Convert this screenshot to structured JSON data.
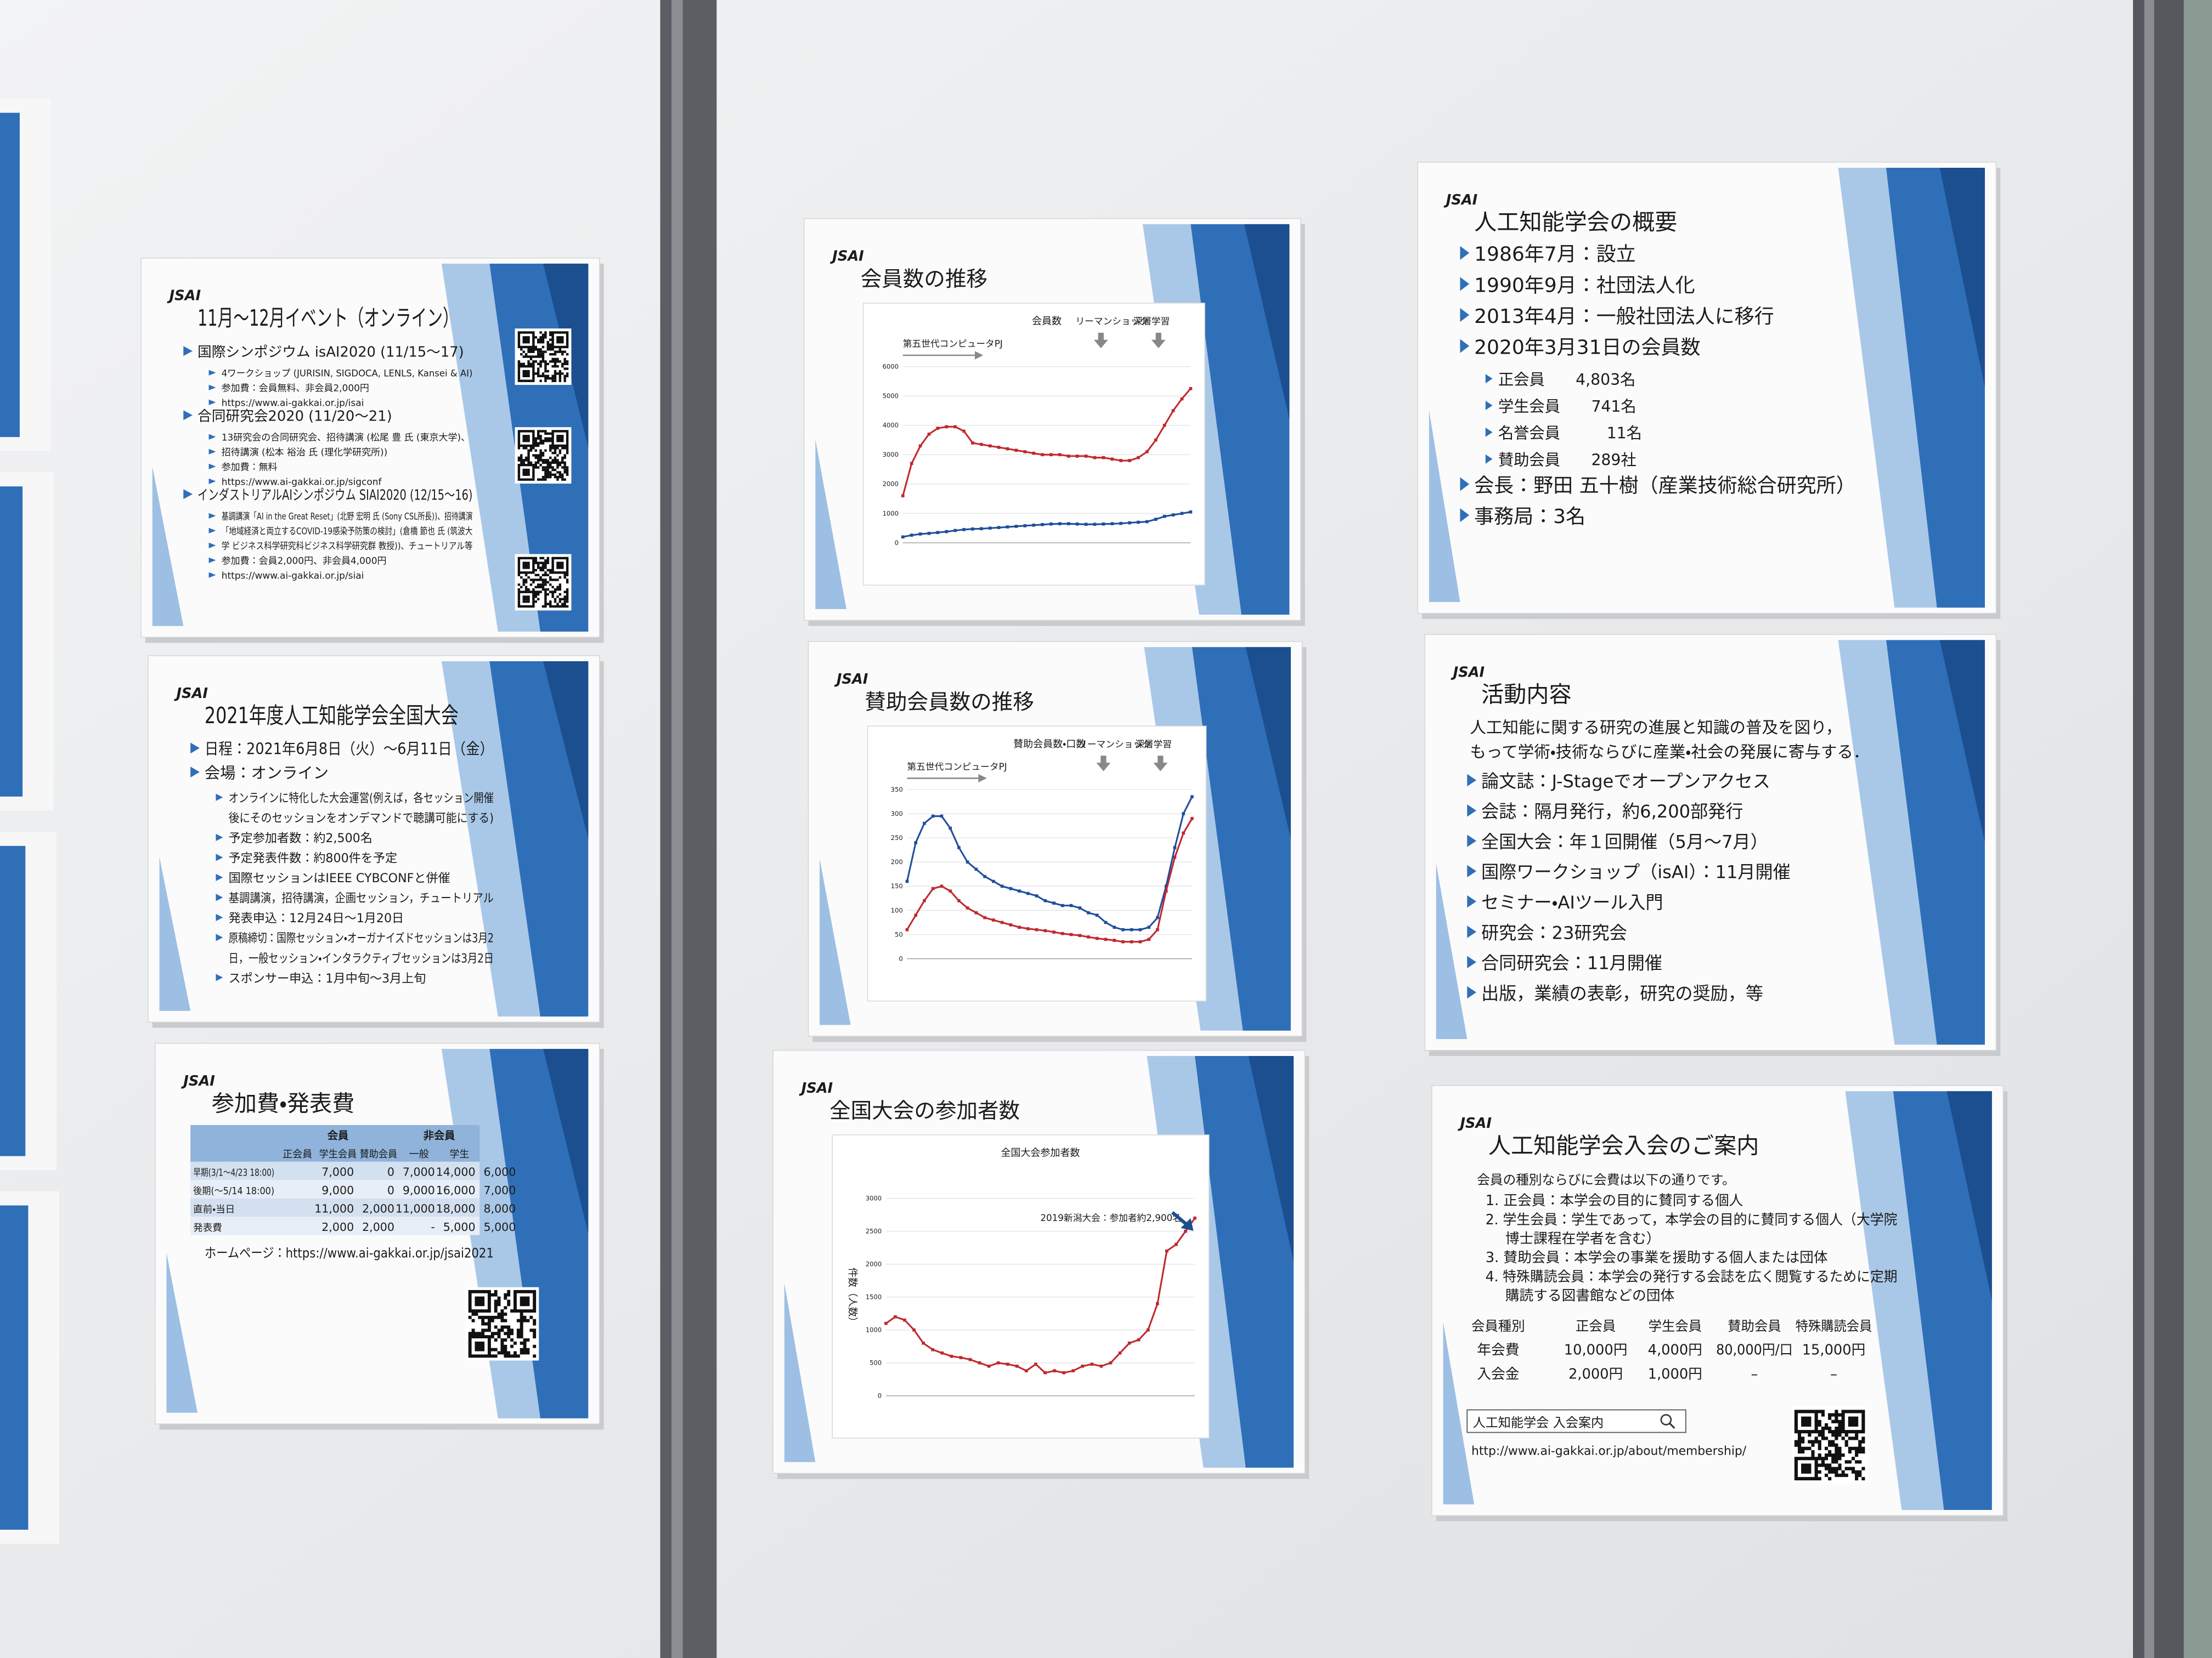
{
  "posters": [
    {
      "logo": "JSAI",
      "title": "11月～12月イベント（オンライン）",
      "items": [
        {
          "text": "国際シンポジウム isAI2020 (11/15～17)",
          "details": [
            "4ワークショップ (JURISIN, SIGDOCA, LENLS, Kansei & AI)",
            "参加費：会員無料、非会員2,000円",
            "https://www.ai-gakkai.or.jp/isai"
          ]
        },
        {
          "text": "合同研究会2020 (11/20～21)",
          "details": [
            "13研究会の合同研究会、招待講演 (松尾 豊 氏 (東京大学)、",
            "招待講演 (松本 裕治 氏 (理化学研究所))",
            "参加費：無料",
            "https://www.ai-gakkai.or.jp/sigconf"
          ]
        },
        {
          "text": "インダストリアルAIシンポジウム SIAI2020 (12/15～16)",
          "details": [
            "基調講演「AI in the Great Reset」(北野 宏明 氏 (Sony CSL所長))、招待講演",
            "「地域経済と両立するCOVID-19感染予防策の検討」(倉橋 節也 氏 (筑波大",
            "学 ビジネス科学研究科ビジネス科学研究群 教授))、チュートリアル等",
            "参加費：会員2,000円、非会員4,000円",
            "https://www.ai-gakkai.or.jp/siai"
          ]
        }
      ]
    },
    {
      "logo": "JSAI",
      "title": "2021年度人工知能学会全国大会",
      "items": [
        {
          "text": "日程：2021年6月8日（火）～6月11日（金）"
        },
        {
          "text": "会場：オンライン",
          "details": [
            [
              "オンラインに特化した大会運営(例えば，各セッション開催",
              "後にそのセッションをオンデマンドで聴講可能にする)"
            ],
            "予定参加者数：約2,500名",
            "予定発表件数：約800件を予定",
            "国際セッションはIEEE CYBCONFと併催",
            "基調講演，招待講演，企画セッション，チュートリアル",
            "発表申込：12月24日～1月20日",
            [
              "原稿締切：国際セッション・オーガナイズドセッションは3月2",
              "日，一般セッション・インタラクティブセッションは3月2日"
            ],
            "スポンサー申込：1月中旬～3月上旬"
          ]
        }
      ]
    },
    {
      "logo": "JSAI",
      "title": "参加費・発表費",
      "table": {
        "group_header": [
          "会員",
          "非会員"
        ],
        "header": [
          "正会員",
          "学生会員",
          "賛助会員",
          "一般",
          "学生"
        ],
        "rows": [
          [
            "早期(3/1～4/23 18:00)",
            "7,000",
            "0",
            "7,000",
            "14,000",
            "6,000"
          ],
          [
            "後期(～5/14 18:00)",
            "9,000",
            "0",
            "9,000",
            "16,000",
            "7,000"
          ],
          [
            "直前・当日",
            "11,000",
            "2,000",
            "11,000",
            "18,000",
            "8,000"
          ],
          [
            "発表費",
            "2,000",
            "2,000",
            "-",
            "5,000",
            "5,000"
          ]
        ]
      },
      "homepage": "ホームページ：https://www.ai-gakkai.or.jp/jsai2021"
    },
    {
      "logo": "JSAI",
      "title": "会員数の推移",
      "chart": {
        "type": "line",
        "chart_title": "会員数",
        "annotations": [
          "第五世代コンピュータPJ",
          "リーマンショック",
          "深層学習"
        ],
        "ylim": [
          0,
          6000
        ],
        "yticks": [
          0,
          1000,
          2000,
          3000,
          4000,
          5000,
          6000
        ],
        "series": [
          {
            "color": "#c0282d",
            "values": [
              1600,
              2700,
              3300,
              3700,
              3900,
              3950,
              3950,
              3800,
              3400,
              3350,
              3300,
              3250,
              3200,
              3150,
              3100,
              3050,
              3000,
              3000,
              3000,
              2950,
              2950,
              2950,
              2900,
              2900,
              2850,
              2800,
              2800,
              2900,
              3100,
              3500,
              4000,
              4500,
              4900,
              5250
            ]
          },
          {
            "color": "#1f4e9c",
            "values": [
              200,
              260,
              300,
              320,
              350,
              380,
              420,
              450,
              470,
              480,
              500,
              520,
              540,
              560,
              580,
              600,
              620,
              640,
              650,
              650,
              640,
              630,
              630,
              640,
              650,
              660,
              680,
              700,
              720,
              800,
              900,
              950,
              1000,
              1050
            ]
          }
        ]
      }
    },
    {
      "logo": "JSAI",
      "title": "賛助会員数の推移",
      "chart": {
        "type": "line",
        "chart_title": "賛助会員数・口数",
        "annotations": [
          "第五世代コンピュータPJ",
          "リーマンショック",
          "深層学習"
        ],
        "ylim": [
          0,
          350
        ],
        "yticks": [
          0,
          50,
          100,
          150,
          200,
          250,
          300,
          350
        ],
        "series": [
          {
            "color": "#1f4e9c",
            "values": [
              160,
              240,
              280,
              295,
              295,
              270,
              230,
              200,
              185,
              170,
              160,
              150,
              145,
              140,
              135,
              130,
              120,
              115,
              110,
              110,
              105,
              95,
              90,
              75,
              65,
              60,
              60,
              60,
              65,
              85,
              150,
              230,
              300,
              335
            ]
          },
          {
            "color": "#c0282d",
            "values": [
              60,
              90,
              120,
              145,
              150,
              140,
              120,
              105,
              95,
              85,
              80,
              75,
              70,
              65,
              62,
              60,
              58,
              55,
              52,
              50,
              48,
              45,
              42,
              40,
              38,
              35,
              35,
              35,
              40,
              60,
              140,
              210,
              260,
              290
            ]
          }
        ]
      }
    },
    {
      "logo": "JSAI",
      "title": "全国大会の参加者数",
      "chart": {
        "type": "line",
        "chart_title": "全国大会参加者数",
        "y_label": "件数（人数）",
        "annotations": [
          "2019新潟大会：参加者約2,900名"
        ],
        "ylim": [
          0,
          3000
        ],
        "yticks": [
          0,
          500,
          1000,
          1500,
          2000,
          2500,
          3000
        ],
        "series": [
          {
            "color": "#c0282d",
            "values": [
              1100,
              1200,
              1150,
              1000,
              800,
              700,
              650,
              600,
              580,
              550,
              500,
              450,
              500,
              480,
              450,
              380,
              480,
              350,
              380,
              350,
              380,
              450,
              480,
              450,
              500,
              650,
              800,
              850,
              1000,
              1400,
              2200,
              2300,
              2500,
              2700
            ]
          }
        ]
      }
    },
    {
      "logo": "JSAI",
      "title": "人工知能学会の概要",
      "items": [
        {
          "text": "1986年7月：設立"
        },
        {
          "text": "1990年9月：社団法人化"
        },
        {
          "text": "2013年4月：一般社団法人に移行"
        },
        {
          "text": "2020年3月31日の会員数",
          "details": [
            "正会員　　4,803名",
            "学生会員　　741名",
            "名誉会員　　　11名",
            "賛助会員　　289社"
          ]
        },
        {
          "text": "会長：野田 五十樹（産業技術総合研究所）"
        },
        {
          "text": "事務局：3名"
        }
      ]
    },
    {
      "logo": "JSAI",
      "title": "活動内容",
      "intro": [
        "人工知能に関する研究の進展と知識の普及を図り，",
        "もって学術・技術ならびに産業・社会の発展に寄与する．"
      ],
      "items": [
        {
          "text": "論文誌：J-Stageでオープンアクセス"
        },
        {
          "text": "会誌：隔月発行，約6,200部発行"
        },
        {
          "text": "全国大会：年１回開催（5月～7月）"
        },
        {
          "text": "国際ワークショップ（isAI）：11月開催"
        },
        {
          "text": "セミナー・AIツール入門"
        },
        {
          "text": "研究会：23研究会"
        },
        {
          "text": "合同研究会：11月開催"
        },
        {
          "text": "出版，業績の表彰，研究の奨励，等"
        }
      ]
    },
    {
      "logo": "JSAI",
      "title": "人工知能学会入会のご案内",
      "intro": [
        "会員の種別ならびに会費は以下の通りです。"
      ],
      "list": [
        "1. 正会員：本学会の目的に賛同する個人",
        "2. 学生会員：学生であって，本学会の目的に賛同する個人（大学院",
        "博士課程在学者を含む）",
        "3. 賛助会員：本学会の事業を援助する個人または団体",
        "4. 特殊購読会員：本学会の発行する会誌を広く閲覧するために定期",
        "購読する図書館などの団体"
      ],
      "table": {
        "header": [
          "会員種別",
          "正会員",
          "学生会員",
          "賛助会員",
          "特殊購読会員"
        ],
        "rows": [
          [
            "年会費",
            "10,000円",
            "4,000円",
            "80,000円/口",
            "15,000円"
          ],
          [
            "入会金",
            "2,000円",
            "1,000円",
            "–",
            "–"
          ]
        ]
      },
      "search_box": "人工知能学会 入会案内",
      "url": "http://www.ai-gakkai.or.jp/about/membership/"
    }
  ]
}
